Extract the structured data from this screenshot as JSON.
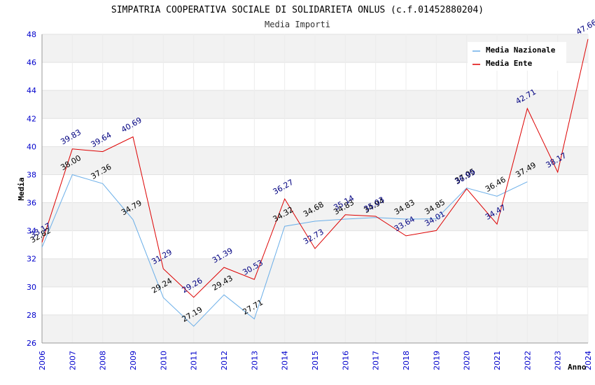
{
  "chart_data": {
    "type": "line",
    "title": "SIMPATRIA COOPERATIVA SOCIALE DI SOLIDARIETA ONLUS (c.f.01452880204)",
    "subtitle": "Media Importi",
    "xlabel": "Anno",
    "ylabel": "Media",
    "ylim": [
      26,
      48
    ],
    "yticks": [
      26,
      28,
      30,
      32,
      34,
      36,
      38,
      40,
      42,
      44,
      46,
      48
    ],
    "categories": [
      "2006",
      "2007",
      "2008",
      "2009",
      "2010",
      "2011",
      "2012",
      "2013",
      "2014",
      "2015",
      "2016",
      "2017",
      "2018",
      "2019",
      "2020",
      "2021",
      "2022",
      "2023",
      "2024"
    ],
    "legend_position": "top-right",
    "series": [
      {
        "name": "Media Nazionale",
        "color": "#6aaee8",
        "values": [
          32.82,
          38.0,
          37.36,
          34.79,
          29.24,
          27.19,
          29.43,
          27.71,
          34.32,
          34.68,
          34.83,
          34.94,
          34.83,
          34.85,
          37.05,
          36.46,
          37.49,
          null,
          null
        ],
        "labels": [
          "32.82",
          "38.00",
          "37.36",
          "34.79",
          "29.24",
          "27.19",
          "29.43",
          "27.71",
          "34.32",
          "34.68",
          "34.83",
          "34.94",
          "34.83",
          "34.85",
          "37.05",
          "36.46",
          "37.49",
          "",
          ""
        ]
      },
      {
        "name": "Media Ente",
        "color": "#dd0000",
        "values": [
          33.17,
          39.83,
          39.64,
          40.69,
          31.29,
          29.26,
          31.39,
          30.53,
          36.27,
          32.73,
          35.14,
          35.03,
          33.64,
          34.01,
          36.99,
          34.47,
          42.71,
          38.17,
          47.66
        ],
        "labels": [
          "33.17",
          "39.83",
          "39.64",
          "40.69",
          "31.29",
          "29.26",
          "31.39",
          "30.53",
          "36.27",
          "32.73",
          "35.14",
          "35.03",
          "33.64",
          "34.01",
          "36.99",
          "34.47",
          "42.71",
          "38.17",
          "47.66"
        ]
      }
    ]
  }
}
